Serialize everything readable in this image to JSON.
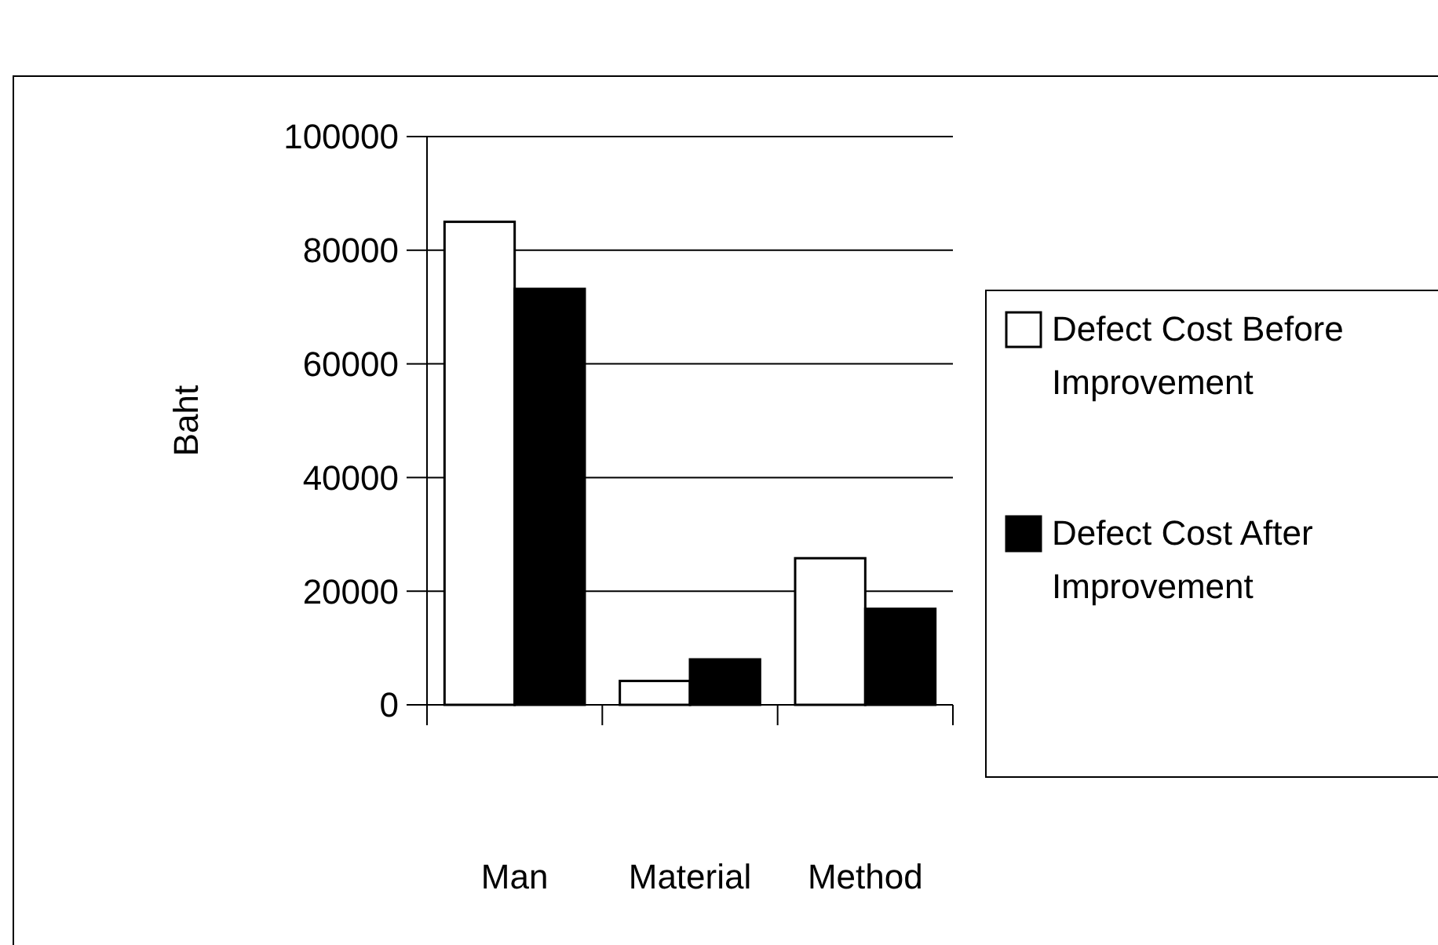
{
  "chart_data": {
    "type": "bar",
    "ylabel": "Baht",
    "categories": [
      "Man",
      "Material",
      "Method"
    ],
    "series": [
      {
        "name": "Defect Cost Before Improvement",
        "color": "#ffffff",
        "values": [
          85000,
          4200,
          25800
        ]
      },
      {
        "name": "Defect Cost After Improvement",
        "color": "#000000",
        "values": [
          73200,
          8000,
          16900
        ]
      }
    ],
    "ylim": [
      0,
      100000
    ],
    "yticks": [
      0,
      20000,
      40000,
      60000,
      80000,
      100000
    ],
    "grid": "y",
    "legend": "right"
  }
}
